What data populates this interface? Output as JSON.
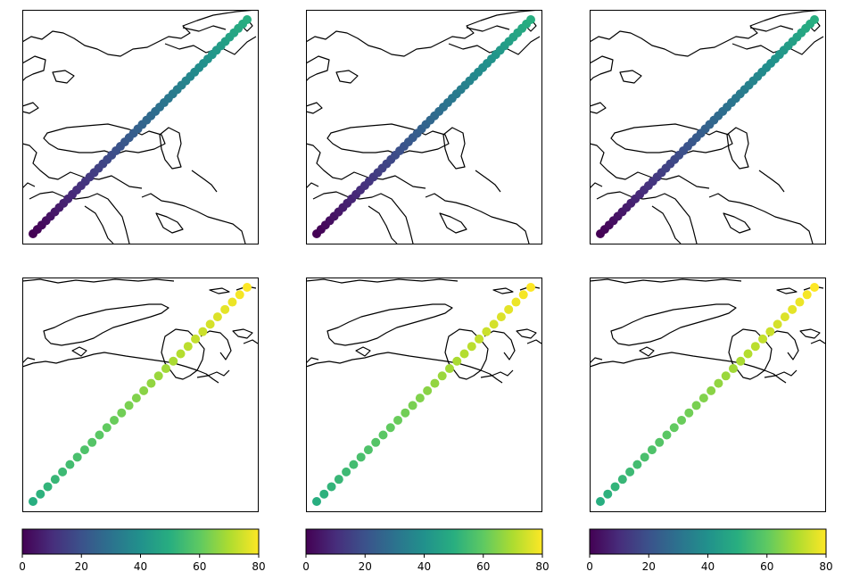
{
  "figure": {
    "layout": "2 rows x 3 columns of map panels with one horizontal colorbar under each column",
    "colormap": "viridis"
  },
  "chart_data": [
    {
      "type": "scatter",
      "panel": "row1-col1",
      "map_region": "Eurasia: Middle East to Siberia",
      "color_range": [
        0,
        80
      ],
      "points": {
        "count": 50,
        "color_value_start": 0,
        "color_value_end": 50
      }
    },
    {
      "type": "scatter",
      "panel": "row1-col2",
      "map_region": "Eurasia: Middle East to Siberia",
      "color_range": [
        0,
        80
      ],
      "points": {
        "count": 50,
        "color_value_start": 0,
        "color_value_end": 50
      }
    },
    {
      "type": "scatter",
      "panel": "row1-col3",
      "map_region": "Eurasia: Middle East to Siberia",
      "color_range": [
        0,
        80
      ],
      "points": {
        "count": 50,
        "color_value_start": 0,
        "color_value_end": 50
      }
    },
    {
      "type": "scatter",
      "panel": "row2-col1",
      "map_region": "Arctic coastline",
      "color_range": [
        0,
        80
      ],
      "points": {
        "count": 30,
        "color_value_start": 50,
        "color_value_end": 80
      }
    },
    {
      "type": "scatter",
      "panel": "row2-col2",
      "map_region": "Arctic coastline",
      "color_range": [
        0,
        80
      ],
      "points": {
        "count": 30,
        "color_value_start": 50,
        "color_value_end": 80
      }
    },
    {
      "type": "scatter",
      "panel": "row2-col3",
      "map_region": "Arctic coastline",
      "color_range": [
        0,
        80
      ],
      "points": {
        "count": 30,
        "color_value_start": 50,
        "color_value_end": 80
      }
    }
  ],
  "colorbar": {
    "orientation": "horizontal",
    "range": [
      0,
      80
    ],
    "ticks": [
      0,
      20,
      40,
      60,
      80
    ],
    "tick_labels": [
      "0",
      "20",
      "40",
      "60",
      "80"
    ]
  }
}
